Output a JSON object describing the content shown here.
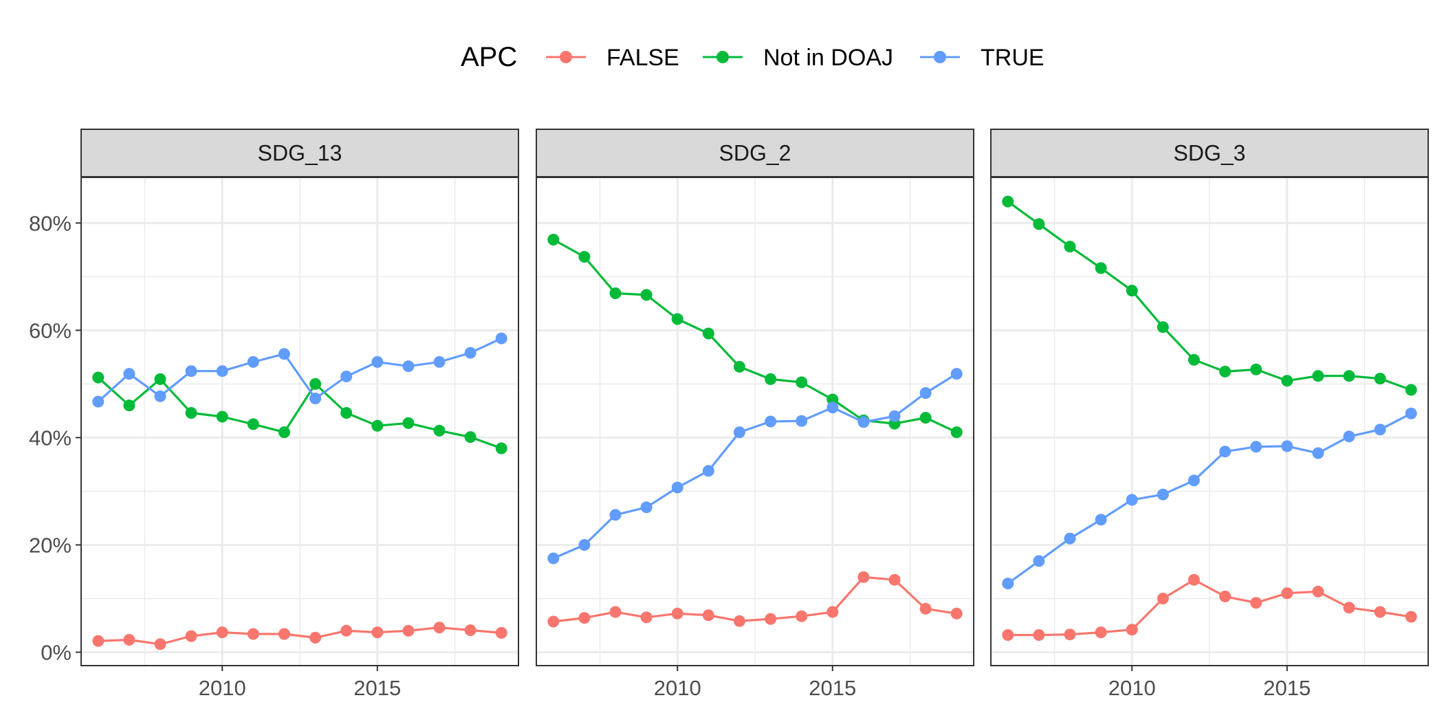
{
  "legend": {
    "title": "APC",
    "entries": [
      {
        "label": "FALSE",
        "color": "#F8766D"
      },
      {
        "label": "Not in DOAJ",
        "color": "#00BA38"
      },
      {
        "label": "TRUE",
        "color": "#619CFF"
      }
    ]
  },
  "chart_data": {
    "type": "line",
    "facet_by": "SDG",
    "x": [
      2006,
      2007,
      2008,
      2009,
      2010,
      2011,
      2012,
      2013,
      2014,
      2015,
      2016,
      2017,
      2018,
      2019
    ],
    "xticks": [
      2010,
      2015
    ],
    "xlim": [
      2005.45,
      2019.55
    ],
    "ylim": [
      -0.025,
      0.885
    ],
    "yticks": [
      0,
      0.2,
      0.4,
      0.6,
      0.8
    ],
    "ytick_labels": [
      "0%",
      "20%",
      "40%",
      "60%",
      "80%"
    ],
    "grid": true,
    "legend_position": "top",
    "panels": [
      {
        "title": "SDG_13",
        "series": [
          {
            "name": "FALSE",
            "values": [
              0.021,
              0.023,
              0.015,
              0.03,
              0.037,
              0.034,
              0.034,
              0.027,
              0.04,
              0.037,
              0.04,
              0.046,
              0.041,
              0.036
            ]
          },
          {
            "name": "Not in DOAJ",
            "values": [
              0.512,
              0.46,
              0.509,
              0.446,
              0.439,
              0.425,
              0.41,
              0.5,
              0.446,
              0.422,
              0.427,
              0.413,
              0.401,
              0.38
            ]
          },
          {
            "name": "TRUE",
            "values": [
              0.467,
              0.519,
              0.477,
              0.524,
              0.524,
              0.541,
              0.556,
              0.473,
              0.514,
              0.541,
              0.533,
              0.541,
              0.558,
              0.585
            ]
          }
        ]
      },
      {
        "title": "SDG_2",
        "series": [
          {
            "name": "FALSE",
            "values": [
              0.057,
              0.064,
              0.075,
              0.065,
              0.072,
              0.069,
              0.058,
              0.062,
              0.067,
              0.075,
              0.14,
              0.135,
              0.081,
              0.072
            ]
          },
          {
            "name": "Not in DOAJ",
            "values": [
              0.769,
              0.737,
              0.669,
              0.666,
              0.621,
              0.594,
              0.532,
              0.509,
              0.503,
              0.471,
              0.432,
              0.426,
              0.437,
              0.41
            ]
          },
          {
            "name": "TRUE",
            "values": [
              0.175,
              0.2,
              0.256,
              0.27,
              0.307,
              0.338,
              0.41,
              0.43,
              0.431,
              0.456,
              0.429,
              0.44,
              0.483,
              0.519
            ]
          }
        ]
      },
      {
        "title": "SDG_3",
        "series": [
          {
            "name": "FALSE",
            "values": [
              0.032,
              0.032,
              0.033,
              0.037,
              0.042,
              0.1,
              0.135,
              0.104,
              0.092,
              0.11,
              0.113,
              0.083,
              0.075,
              0.066
            ]
          },
          {
            "name": "Not in DOAJ",
            "values": [
              0.84,
              0.798,
              0.756,
              0.716,
              0.674,
              0.606,
              0.545,
              0.523,
              0.527,
              0.506,
              0.515,
              0.515,
              0.51,
              0.489
            ]
          },
          {
            "name": "TRUE",
            "values": [
              0.128,
              0.17,
              0.212,
              0.247,
              0.284,
              0.294,
              0.32,
              0.374,
              0.383,
              0.384,
              0.371,
              0.402,
              0.415,
              0.445
            ]
          }
        ]
      }
    ]
  }
}
